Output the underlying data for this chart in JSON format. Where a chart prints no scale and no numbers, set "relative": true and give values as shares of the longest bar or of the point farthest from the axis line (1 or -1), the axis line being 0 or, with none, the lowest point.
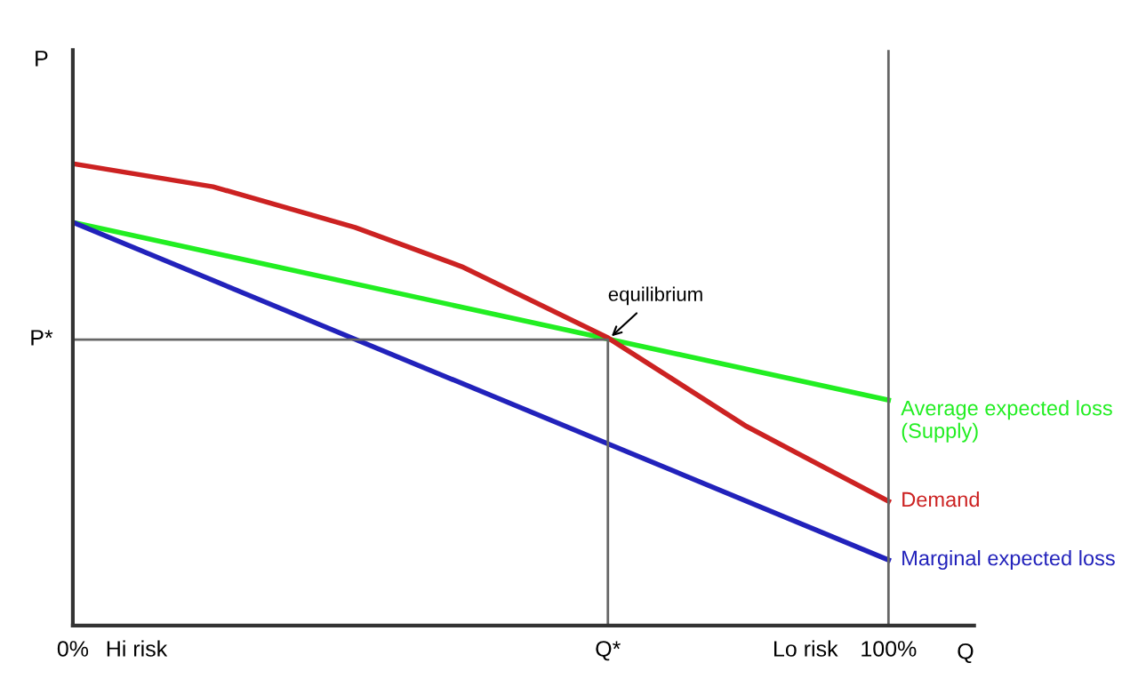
{
  "chart_data": {
    "type": "line",
    "relative": true,
    "xlabel": "Q",
    "ylabel": "P",
    "xlim": [
      0,
      110.5
    ],
    "xticks": [
      {
        "value": 0,
        "label": "0%"
      },
      {
        "value": 7.8,
        "label": "Hi risk"
      },
      {
        "value": 65.6,
        "label": "Q*"
      },
      {
        "value": 89.8,
        "label": "Lo risk"
      },
      {
        "value": 100,
        "label": "100%"
      }
    ],
    "series": [
      {
        "name": "Average expected loss\n(Supply)",
        "color": "#22ee22",
        "x": [
          0,
          100
        ],
        "values": [
          0.873,
          0.488
        ]
      },
      {
        "name": "Demand",
        "color": "#cc2222",
        "x": [
          0,
          17.2,
          34.6,
          47.7,
          65.6,
          82.6,
          100
        ],
        "values": [
          1,
          0.95,
          0.862,
          0.777,
          0.623,
          0.431,
          0.269
        ]
      },
      {
        "name": "Marginal expected loss",
        "color": "#2222bb",
        "x": [
          0,
          100
        ],
        "values": [
          0.873,
          0.142
        ]
      },
      {
        "color": "#666666",
        "x": [
          0,
          65.6,
          65.6
        ],
        "values": [
          0.619,
          0.619,
          0
        ]
      }
    ],
    "ref_lines": [
      {
        "axis": "x",
        "value": 100,
        "color": "#666666"
      }
    ],
    "annotations": [
      {
        "text": "P*",
        "x": 0,
        "y": 0.619
      },
      {
        "text": "equilibrium",
        "x": 65.6,
        "y": 0.619
      }
    ],
    "grid": false,
    "legend": false,
    "marker": "none",
    "line_style": "solid"
  }
}
